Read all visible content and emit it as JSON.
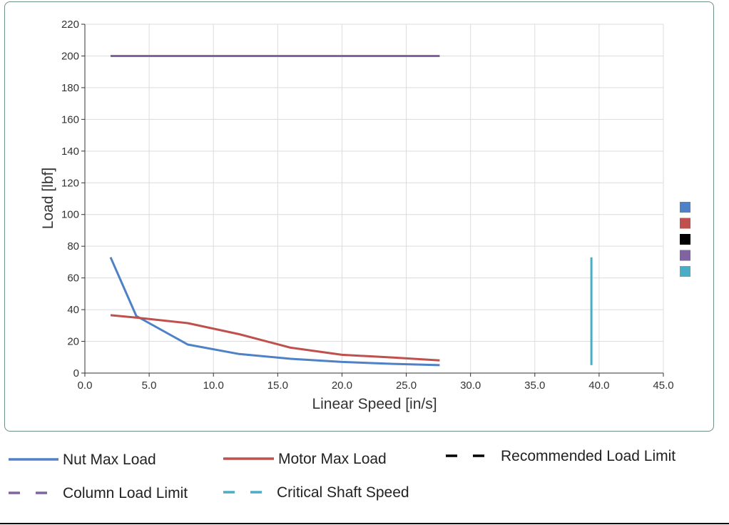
{
  "chart_data": {
    "type": "line",
    "xlabel": "Linear Speed [in/s]",
    "ylabel": "Load [lbf]",
    "xlim": [
      0,
      45
    ],
    "ylim": [
      0,
      220
    ],
    "x_ticks": [
      "0.0",
      "5.0",
      "10.0",
      "15.0",
      "20.0",
      "25.0",
      "30.0",
      "35.0",
      "40.0",
      "45.0"
    ],
    "y_ticks": [
      "0",
      "20",
      "40",
      "60",
      "80",
      "100",
      "120",
      "140",
      "160",
      "180",
      "200",
      "220"
    ],
    "grid": true,
    "legend_position": "bottom",
    "series": [
      {
        "name": "Nut Max Load",
        "color": "#4f81c7",
        "dash": "solid",
        "points": [
          [
            2,
            73
          ],
          [
            4,
            36
          ],
          [
            8,
            18
          ],
          [
            12,
            12
          ],
          [
            16,
            9
          ],
          [
            20,
            7
          ],
          [
            24,
            5.8
          ],
          [
            27.6,
            5
          ]
        ]
      },
      {
        "name": "Motor Max Load",
        "color": "#c0504d",
        "dash": "solid",
        "points": [
          [
            2,
            36.5
          ],
          [
            4,
            35
          ],
          [
            8,
            31.5
          ],
          [
            12,
            24.5
          ],
          [
            16,
            16
          ],
          [
            20,
            11.5
          ],
          [
            24,
            9.8
          ],
          [
            27.6,
            8
          ]
        ]
      },
      {
        "name": "Recommended Load Limit",
        "color": "#000000",
        "dash": "dashed",
        "points": []
      },
      {
        "name": "Column Load Limit",
        "color": "#8064a2",
        "dash": "dashed",
        "points": [
          [
            2,
            200
          ],
          [
            27.6,
            200
          ]
        ]
      },
      {
        "name": "Critical Shaft Speed",
        "color": "#4bacc6",
        "dash": "dashed",
        "points": [
          [
            39.4,
            73
          ],
          [
            39.4,
            5
          ]
        ]
      }
    ]
  }
}
